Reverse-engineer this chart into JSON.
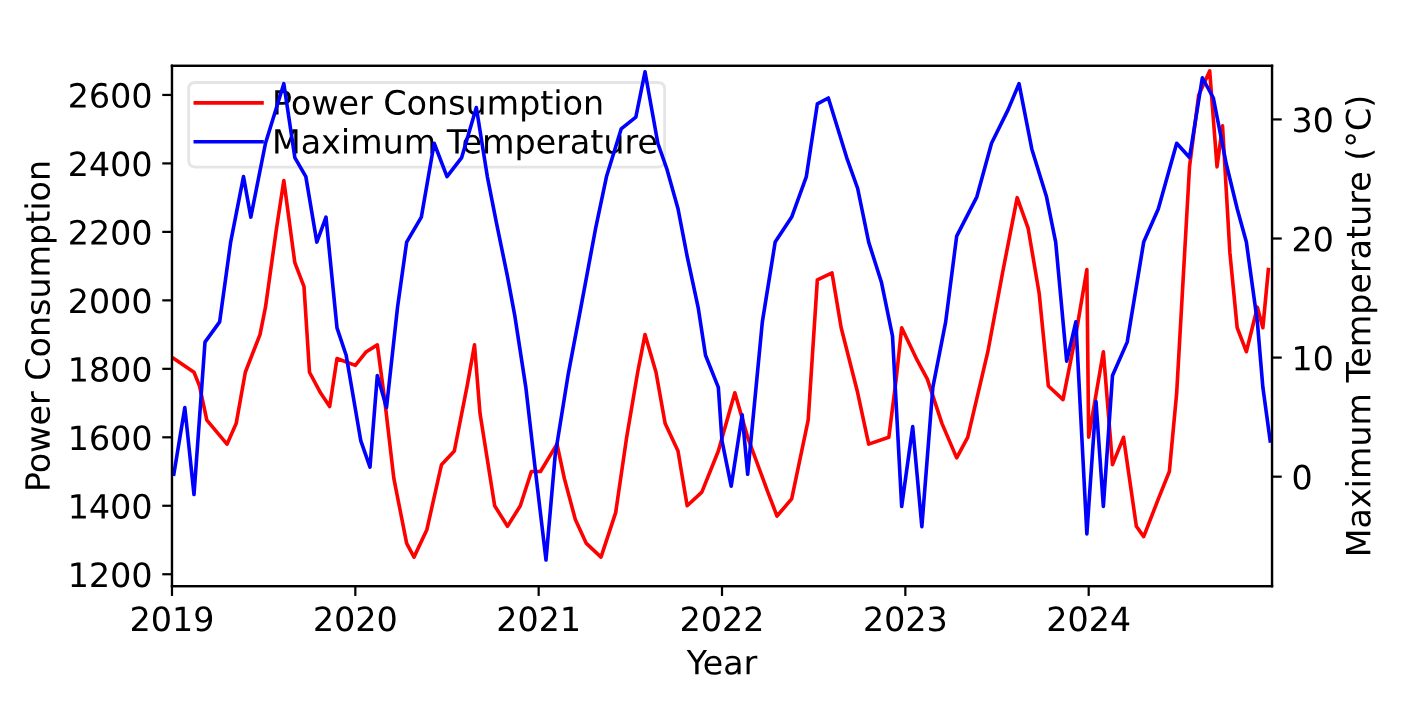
{
  "chart_data": {
    "type": "line",
    "xlabel": "Year",
    "ylabel": "Power Consumption",
    "y2label": "Maximum Temperature (°C)",
    "xlim": [
      2019,
      2025
    ],
    "xticks": [
      2019,
      2020,
      2021,
      2022,
      2023,
      2024
    ],
    "ylim": [
      1165,
      2685
    ],
    "yticks": [
      1200,
      1400,
      1600,
      1800,
      2000,
      2200,
      2400,
      2600
    ],
    "y2lim": [
      -9.2,
      34.5
    ],
    "y2ticks": [
      0,
      10,
      20,
      30
    ],
    "legend": "top left",
    "grid": false,
    "marker": "none",
    "line_style": "solid",
    "series": [
      {
        "name": "Power Consumption",
        "color": "#ff0000",
        "x": [
          2019.01,
          2019.12,
          2019.15,
          2019.19,
          2019.3,
          2019.35,
          2019.4,
          2019.48,
          2019.51,
          2019.57,
          2019.61,
          2019.67,
          2019.72,
          2019.75,
          2019.81,
          2019.86,
          2019.9,
          2020.0,
          2020.06,
          2020.12,
          2020.16,
          2020.21,
          2020.28,
          2020.32,
          2020.39,
          2020.47,
          2020.54,
          2020.61,
          2020.65,
          2020.68,
          2020.76,
          2020.83,
          2020.9,
          2020.96,
          2021.01,
          2021.1,
          2021.14,
          2021.2,
          2021.26,
          2021.34,
          2021.42,
          2021.48,
          2021.54,
          2021.58,
          2021.64,
          2021.69,
          2021.76,
          2021.81,
          2021.89,
          2021.98,
          2022.07,
          2022.14,
          2022.25,
          2022.3,
          2022.38,
          2022.47,
          2022.52,
          2022.6,
          2022.65,
          2022.74,
          2022.8,
          2022.91,
          2022.95,
          2022.98,
          2023.06,
          2023.12,
          2023.2,
          2023.28,
          2023.34,
          2023.45,
          2023.53,
          2023.61,
          2023.67,
          2023.73,
          2023.78,
          2023.86,
          2023.93,
          2023.99,
          2024.0,
          2024.08,
          2024.13,
          2024.19,
          2024.26,
          2024.3,
          2024.38,
          2024.44,
          2024.48,
          2024.55,
          2024.6,
          2024.66,
          2024.7,
          2024.73,
          2024.77,
          2024.81,
          2024.86,
          2024.92,
          2024.95,
          2024.98
        ],
        "values": [
          1830,
          1790,
          1750,
          1650,
          1580,
          1640,
          1790,
          1900,
          1980,
          2210,
          2350,
          2110,
          2040,
          1790,
          1730,
          1690,
          1830,
          1810,
          1850,
          1870,
          1710,
          1480,
          1290,
          1250,
          1330,
          1520,
          1560,
          1750,
          1870,
          1670,
          1400,
          1340,
          1400,
          1500,
          1500,
          1580,
          1480,
          1360,
          1290,
          1250,
          1380,
          1600,
          1790,
          1900,
          1790,
          1640,
          1560,
          1400,
          1440,
          1560,
          1730,
          1600,
          1440,
          1370,
          1420,
          1650,
          2060,
          2080,
          1920,
          1730,
          1580,
          1600,
          1770,
          1920,
          1830,
          1770,
          1640,
          1540,
          1600,
          1850,
          2080,
          2300,
          2210,
          2020,
          1750,
          1710,
          1900,
          2090,
          1600,
          1850,
          1520,
          1600,
          1340,
          1310,
          1420,
          1500,
          1730,
          2390,
          2600,
          2670,
          2390,
          2510,
          2140,
          1920,
          1850,
          1980,
          1920,
          2090
        ]
      },
      {
        "name": "Maximum Temperature",
        "color": "#0000ff",
        "axis": "y2",
        "x": [
          2019.01,
          2019.07,
          2019.12,
          2019.18,
          2019.26,
          2019.32,
          2019.39,
          2019.43,
          2019.51,
          2019.61,
          2019.67,
          2019.73,
          2019.79,
          2019.84,
          2019.9,
          2019.95,
          2020.03,
          2020.08,
          2020.12,
          2020.17,
          2020.23,
          2020.28,
          2020.36,
          2020.43,
          2020.5,
          2020.58,
          2020.66,
          2020.72,
          2020.77,
          2020.83,
          2020.87,
          2020.93,
          2020.98,
          2021.04,
          2021.09,
          2021.16,
          2021.23,
          2021.31,
          2021.37,
          2021.45,
          2021.53,
          2021.58,
          2021.65,
          2021.7,
          2021.76,
          2021.81,
          2021.87,
          2021.91,
          2021.98,
          2022.0,
          2022.05,
          2022.11,
          2022.14,
          2022.22,
          2022.29,
          2022.38,
          2022.46,
          2022.52,
          2022.58,
          2022.68,
          2022.74,
          2022.8,
          2022.87,
          2022.93,
          2022.98,
          2023.04,
          2023.09,
          2023.15,
          2023.22,
          2023.28,
          2023.39,
          2023.47,
          2023.56,
          2023.62,
          2023.69,
          2023.77,
          2023.82,
          2023.88,
          2023.93,
          2023.99,
          2024.04,
          2024.08,
          2024.13,
          2024.21,
          2024.3,
          2024.38,
          2024.48,
          2024.55,
          2024.62,
          2024.68,
          2024.75,
          2024.81,
          2024.86,
          2024.92,
          2024.95,
          2024.99
        ],
        "values": [
          0.2,
          5.8,
          -1.5,
          11.3,
          13,
          19.7,
          25.2,
          21.8,
          28,
          33,
          26.8,
          25.2,
          19.7,
          21.8,
          12.5,
          10.2,
          3,
          0.8,
          8.5,
          5.8,
          14.2,
          19.7,
          21.8,
          28,
          25.2,
          26.8,
          31,
          25.2,
          21.3,
          16.8,
          13.5,
          7.5,
          0.8,
          -7,
          1.8,
          8.5,
          14.2,
          20.8,
          25.2,
          29.2,
          30.2,
          34,
          28,
          25.8,
          22.5,
          18.5,
          14.2,
          10.2,
          7.5,
          3,
          -0.8,
          5.2,
          0.2,
          13,
          19.7,
          21.8,
          25.2,
          31.3,
          31.8,
          26.8,
          24.2,
          19.7,
          16.3,
          11.8,
          -2.5,
          4.2,
          -4.2,
          7.5,
          13,
          20.2,
          23.5,
          28,
          30.8,
          33,
          27.5,
          23.5,
          19.7,
          9.7,
          13,
          -4.8,
          6.3,
          -2.5,
          8.5,
          11.3,
          19.7,
          22.5,
          28,
          26.8,
          33.5,
          31.8,
          26.3,
          22.5,
          19.7,
          13,
          7.5,
          3
        ]
      }
    ]
  }
}
